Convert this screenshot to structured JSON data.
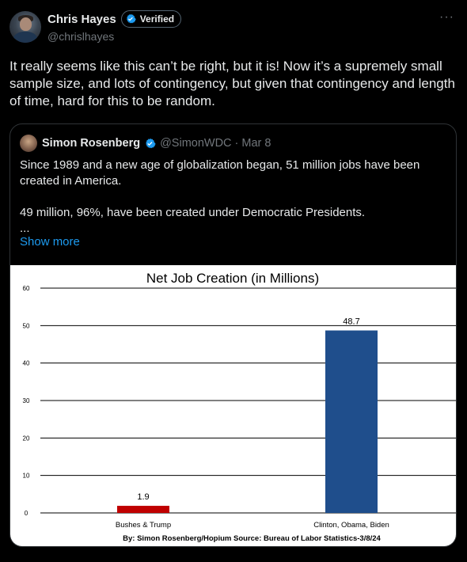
{
  "author": {
    "display_name": "Chris Hayes",
    "verified_label": "Verified",
    "handle": "@chrislhayes"
  },
  "more_icon": "more-horizontal-icon",
  "tweet": {
    "text": "It really seems like this can’t be right, but it is! Now it’s a supremely small sample size, and lots of contingency, but given that contingency and length of time, hard for this to be random."
  },
  "quote": {
    "display_name": "Simon Rosenberg",
    "handle": "@SimonWDC",
    "date": "Mar 8",
    "line1": "Since 1989 and a new age of globalization began, 51 million jobs have been created in America.",
    "line2": "49 million, 96%, have been created under Democratic Presidents.",
    "line3": "...",
    "show_more": "Show more"
  },
  "colors": {
    "background": "#000000",
    "verified_blue": "#1d9bf0",
    "link": "#1d9bf0",
    "bar_republican": "#c00000",
    "bar_democrat": "#1f4e8c"
  },
  "chart_data": {
    "type": "bar",
    "title": "Net Job Creation (in Millions)",
    "categories": [
      "Bushes & Trump",
      "Clinton, Obama, Biden"
    ],
    "values": [
      1.9,
      48.7
    ],
    "data_labels": [
      "1.9",
      "48.7"
    ],
    "ylim": [
      0,
      60
    ],
    "yticks": [
      0,
      10,
      20,
      30,
      40,
      50,
      60
    ],
    "grid": true,
    "xlabel": "",
    "ylabel": "",
    "source": "By: Simon Rosenberg/Hopium Source: Bureau of Labor Statistics-3/8/24"
  }
}
